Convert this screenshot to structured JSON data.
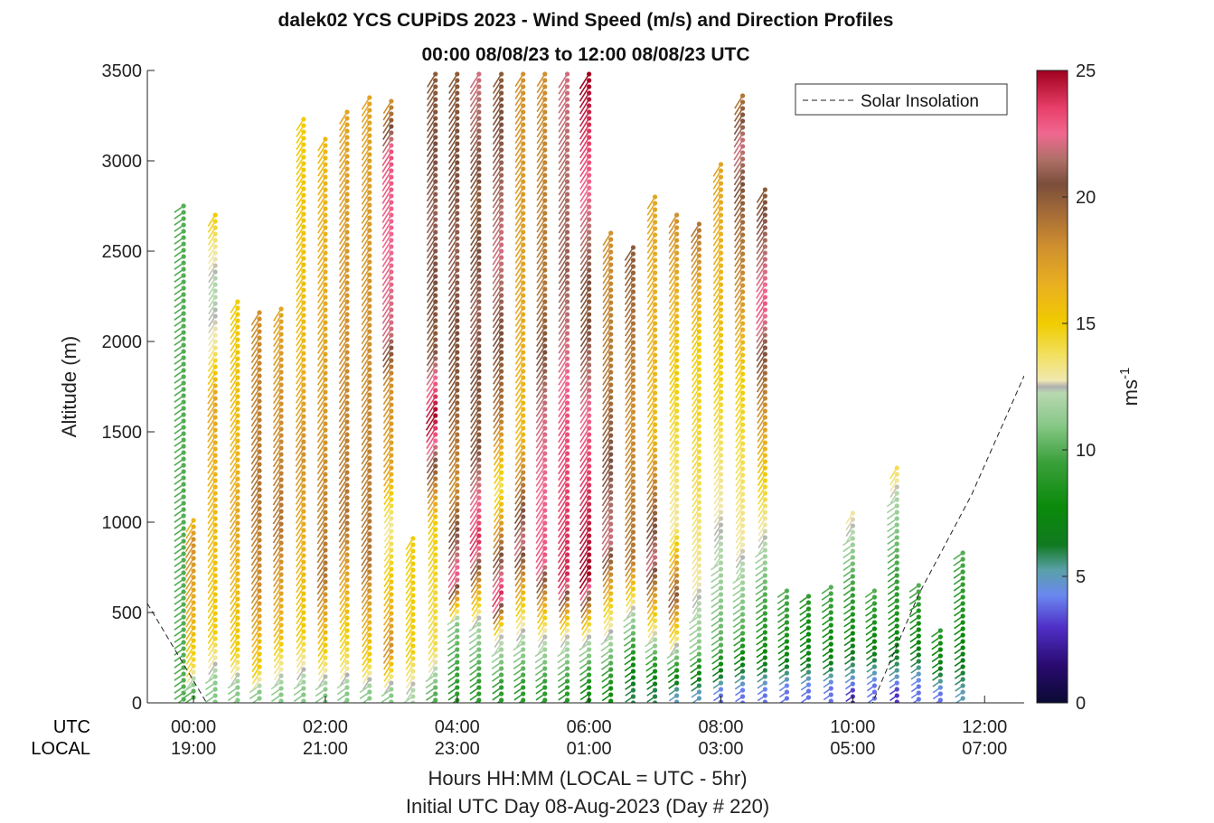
{
  "chart_data": {
    "type": "scatter",
    "title": "dalek02 YCS CUPiDS 2023 - Wind Speed (m/s) and Direction Profiles",
    "subtitle": "00:00 08/08/23 to 12:00 08/08/23  UTC",
    "ylabel": "Altitude (m)",
    "xlabel": "Hours HH:MM  (LOCAL = UTC - 5hr)",
    "xlabel2": "Initial UTC Day 08-Aug-2023 (Day # 220)",
    "row_labels": [
      "UTC",
      "LOCAL"
    ],
    "xlim": [
      -0.7,
      12.6
    ],
    "ylim": [
      0,
      3500
    ],
    "x_ticks": [
      0,
      2,
      4,
      6,
      8,
      10,
      12
    ],
    "utc_tick_labels": [
      "00:00",
      "02:00",
      "04:00",
      "06:00",
      "08:00",
      "10:00",
      "12:00"
    ],
    "local_tick_labels": [
      "19:00",
      "21:00",
      "23:00",
      "01:00",
      "03:00",
      "05:00",
      "07:00"
    ],
    "y_ticks": [
      0,
      500,
      1000,
      1500,
      2000,
      2500,
      3000,
      3500
    ],
    "y_tick_labels": [
      "0",
      "500",
      "1000",
      "1500",
      "2000",
      "2500",
      "3000",
      "3500"
    ],
    "legend": {
      "label": "Solar Insolation",
      "position": "top-right"
    },
    "colorbar": {
      "label": "ms",
      "label_exponent": "-1",
      "range": [
        0,
        25
      ],
      "ticks": [
        0,
        5,
        10,
        15,
        20,
        25
      ],
      "tick_labels": [
        "0",
        "5",
        "10",
        "15",
        "20",
        "25"
      ]
    },
    "solar_insolation": {
      "x": [
        -0.7,
        0.2,
        1,
        2,
        3,
        4,
        5,
        6,
        7,
        8,
        9,
        10,
        10.3,
        11,
        11.8,
        12.6
      ],
      "y": [
        550,
        0,
        0,
        0,
        0,
        0,
        0,
        0,
        0,
        0,
        0,
        0,
        0,
        600,
        1150,
        1810
      ]
    },
    "profiles": [
      {
        "t": -0.15,
        "top": 2750,
        "band": [
          [
            2750,
            10
          ],
          [
            2500,
            10
          ],
          [
            0,
            10
          ]
        ]
      },
      {
        "t": 0.0,
        "top": 1010,
        "band": [
          [
            1010,
            16
          ],
          [
            900,
            18
          ],
          [
            400,
            16
          ],
          [
            200,
            14
          ],
          [
            60,
            10
          ]
        ]
      },
      {
        "t": 0.33,
        "top": 2700,
        "band": [
          [
            2700,
            15
          ],
          [
            2500,
            13
          ],
          [
            2300,
            12
          ],
          [
            2000,
            13
          ],
          [
            1700,
            17
          ],
          [
            400,
            15
          ],
          [
            100,
            11
          ]
        ]
      },
      {
        "t": 0.67,
        "top": 2220,
        "band": [
          [
            2220,
            15
          ],
          [
            1500,
            16
          ],
          [
            1000,
            17
          ],
          [
            300,
            15
          ],
          [
            80,
            11
          ]
        ]
      },
      {
        "t": 1.0,
        "top": 2160,
        "band": [
          [
            2160,
            18
          ],
          [
            1200,
            19
          ],
          [
            600,
            18
          ],
          [
            200,
            15
          ],
          [
            60,
            11
          ]
        ]
      },
      {
        "t": 1.33,
        "top": 2180,
        "band": [
          [
            2180,
            17
          ],
          [
            1000,
            19
          ],
          [
            400,
            16
          ],
          [
            60,
            11
          ]
        ]
      },
      {
        "t": 1.67,
        "top": 3230,
        "band": [
          [
            3230,
            15
          ],
          [
            2000,
            16
          ],
          [
            1400,
            18
          ],
          [
            400,
            15
          ],
          [
            60,
            11
          ]
        ]
      },
      {
        "t": 2.0,
        "top": 3120,
        "band": [
          [
            3120,
            16
          ],
          [
            2000,
            17
          ],
          [
            700,
            19
          ],
          [
            300,
            15
          ],
          [
            60,
            11
          ]
        ]
      },
      {
        "t": 2.33,
        "top": 3270,
        "band": [
          [
            3270,
            17
          ],
          [
            2000,
            18
          ],
          [
            1000,
            19
          ],
          [
            250,
            14
          ],
          [
            60,
            11
          ]
        ]
      },
      {
        "t": 2.67,
        "top": 3350,
        "band": [
          [
            3350,
            17
          ],
          [
            2000,
            18
          ],
          [
            800,
            19
          ],
          [
            250,
            15
          ],
          [
            60,
            11
          ]
        ]
      },
      {
        "t": 3.0,
        "top": 3330,
        "band": [
          [
            3330,
            18
          ],
          [
            3050,
            23
          ],
          [
            2050,
            22
          ],
          [
            1800,
            18
          ],
          [
            1300,
            17
          ],
          [
            1000,
            13
          ],
          [
            300,
            18
          ],
          [
            60,
            11
          ]
        ]
      },
      {
        "t": 3.33,
        "top": 910,
        "band": [
          [
            910,
            15
          ],
          [
            300,
            15
          ],
          [
            60,
            12
          ]
        ]
      },
      {
        "t": 3.67,
        "top": 3480,
        "band": [
          [
            3480,
            20
          ],
          [
            2700,
            21
          ],
          [
            2000,
            20
          ],
          [
            1600,
            25
          ],
          [
            1000,
            15
          ],
          [
            300,
            14
          ],
          [
            60,
            10
          ]
        ]
      },
      {
        "t": 4.0,
        "top": 3480,
        "band": [
          [
            3480,
            20
          ],
          [
            2500,
            21
          ],
          [
            1700,
            20
          ],
          [
            1200,
            18
          ],
          [
            700,
            23
          ],
          [
            450,
            11
          ],
          [
            80,
            9
          ]
        ]
      },
      {
        "t": 4.33,
        "top": 3480,
        "band": [
          [
            3480,
            22
          ],
          [
            2800,
            20
          ],
          [
            2200,
            21
          ],
          [
            1500,
            20
          ],
          [
            900,
            24
          ],
          [
            450,
            12
          ],
          [
            80,
            9
          ]
        ]
      },
      {
        "t": 4.67,
        "top": 3480,
        "band": [
          [
            3480,
            20
          ],
          [
            2500,
            22
          ],
          [
            1600,
            19
          ],
          [
            1200,
            14
          ],
          [
            600,
            24
          ],
          [
            400,
            13
          ],
          [
            80,
            9
          ]
        ]
      },
      {
        "t": 5.0,
        "top": 3480,
        "band": [
          [
            3480,
            18
          ],
          [
            2300,
            17
          ],
          [
            1500,
            16
          ],
          [
            900,
            22
          ],
          [
            450,
            13
          ],
          [
            80,
            9
          ]
        ]
      },
      {
        "t": 5.33,
        "top": 3480,
        "band": [
          [
            3480,
            18
          ],
          [
            2300,
            19
          ],
          [
            1600,
            22
          ],
          [
            800,
            23
          ],
          [
            400,
            13
          ],
          [
            80,
            9
          ]
        ]
      },
      {
        "t": 5.67,
        "top": 3480,
        "band": [
          [
            3480,
            22
          ],
          [
            2400,
            21
          ],
          [
            1600,
            23
          ],
          [
            700,
            24
          ],
          [
            400,
            13
          ],
          [
            80,
            9
          ]
        ]
      },
      {
        "t": 6.0,
        "top": 3480,
        "band": [
          [
            3480,
            25
          ],
          [
            2200,
            20
          ],
          [
            1500,
            23
          ],
          [
            700,
            25
          ],
          [
            400,
            13
          ],
          [
            80,
            8
          ]
        ]
      },
      {
        "t": 6.33,
        "top": 2600,
        "band": [
          [
            2600,
            18
          ],
          [
            1800,
            19
          ],
          [
            900,
            22
          ],
          [
            500,
            14
          ],
          [
            80,
            8
          ]
        ]
      },
      {
        "t": 6.67,
        "top": 2520,
        "band": [
          [
            2520,
            20
          ],
          [
            1600,
            18
          ],
          [
            800,
            19
          ],
          [
            500,
            12
          ],
          [
            80,
            6
          ]
        ]
      },
      {
        "t": 7.0,
        "top": 2800,
        "band": [
          [
            2800,
            17
          ],
          [
            1500,
            16
          ],
          [
            800,
            22
          ],
          [
            400,
            13
          ],
          [
            80,
            6
          ]
        ]
      },
      {
        "t": 7.33,
        "top": 2700,
        "band": [
          [
            2700,
            18
          ],
          [
            1800,
            15
          ],
          [
            1000,
            13
          ],
          [
            600,
            20
          ],
          [
            300,
            12
          ],
          [
            60,
            5
          ]
        ]
      },
      {
        "t": 7.67,
        "top": 2650,
        "band": [
          [
            2650,
            19
          ],
          [
            2000,
            15
          ],
          [
            1200,
            14
          ],
          [
            700,
            13
          ],
          [
            300,
            11
          ],
          [
            60,
            5
          ]
        ]
      },
      {
        "t": 8.0,
        "top": 2980,
        "band": [
          [
            2980,
            17
          ],
          [
            2200,
            16
          ],
          [
            1500,
            14
          ],
          [
            800,
            12
          ],
          [
            300,
            10
          ],
          [
            60,
            4
          ]
        ]
      },
      {
        "t": 8.33,
        "top": 3360,
        "band": [
          [
            3360,
            19
          ],
          [
            3100,
            22
          ],
          [
            2800,
            20
          ],
          [
            2300,
            18
          ],
          [
            1800,
            15
          ],
          [
            900,
            13
          ],
          [
            400,
            10
          ],
          [
            60,
            4
          ]
        ]
      },
      {
        "t": 8.67,
        "top": 2840,
        "band": [
          [
            2840,
            20
          ],
          [
            2200,
            23
          ],
          [
            1900,
            20
          ],
          [
            600,
            10
          ],
          [
            300,
            8
          ],
          [
            60,
            4
          ]
        ]
      },
      {
        "t": 9.0,
        "top": 620,
        "band": [
          [
            620,
            10
          ],
          [
            300,
            8
          ],
          [
            80,
            4
          ]
        ]
      },
      {
        "t": 9.33,
        "top": 590,
        "band": [
          [
            590,
            9
          ],
          [
            250,
            7
          ],
          [
            80,
            4
          ]
        ]
      },
      {
        "t": 9.67,
        "top": 640,
        "band": [
          [
            640,
            10
          ],
          [
            250,
            7
          ],
          [
            80,
            4
          ]
        ]
      },
      {
        "t": 10.0,
        "top": 1050,
        "band": [
          [
            1050,
            13
          ],
          [
            700,
            10
          ],
          [
            400,
            8
          ],
          [
            150,
            5
          ],
          [
            60,
            3
          ]
        ]
      },
      {
        "t": 10.33,
        "top": 620,
        "band": [
          [
            620,
            10
          ],
          [
            300,
            7
          ],
          [
            100,
            4
          ]
        ]
      },
      {
        "t": 10.67,
        "top": 1300,
        "band": [
          [
            1300,
            14
          ],
          [
            1150,
            12
          ],
          [
            800,
            10
          ],
          [
            400,
            8
          ],
          [
            150,
            5
          ],
          [
            60,
            3
          ]
        ]
      },
      {
        "t": 11.0,
        "top": 650,
        "band": [
          [
            650,
            10
          ],
          [
            300,
            7
          ],
          [
            100,
            4
          ]
        ]
      },
      {
        "t": 11.33,
        "top": 400,
        "band": [
          [
            400,
            9
          ],
          [
            150,
            6
          ],
          [
            60,
            4
          ]
        ]
      },
      {
        "t": 11.67,
        "top": 830,
        "band": [
          [
            830,
            10
          ],
          [
            400,
            8
          ],
          [
            150,
            6
          ],
          [
            60,
            5
          ]
        ]
      }
    ]
  }
}
